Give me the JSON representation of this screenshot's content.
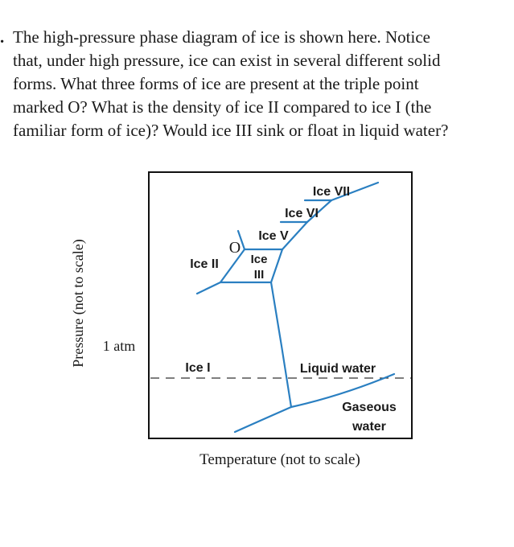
{
  "question": {
    "bullet": ".",
    "lines": [
      "The high-pressure phase diagram of ice is shown here. Notice",
      "that, under high pressure, ice can exist in several different solid",
      "forms. What three forms of ice are present at the triple point",
      "marked O? What is the density of ice II compared to ice I (the",
      "familiar form of ice)? Would ice III sink or float in liquid water?"
    ]
  },
  "diagram": {
    "y_axis_label": "Pressure (not to scale)",
    "x_axis_label": "Temperature (not to scale)",
    "reference_label": "1 atm",
    "triple_point_label": "O",
    "regions": {
      "ice_vii": "Ice VII",
      "ice_vi": "Ice VI",
      "ice_v": "Ice V",
      "ice_iii_line1": "Ice",
      "ice_iii_line2": "III",
      "ice_ii": "Ice II",
      "ice_i": "Ice I",
      "liquid": "Liquid water",
      "gas_line1": "Gaseous",
      "gas_line2": "water"
    },
    "colors": {
      "phase_boundary": "#2a7fc1",
      "frame": "#111111",
      "dashed_line": "#333333",
      "text": "#1a1a1a"
    }
  }
}
